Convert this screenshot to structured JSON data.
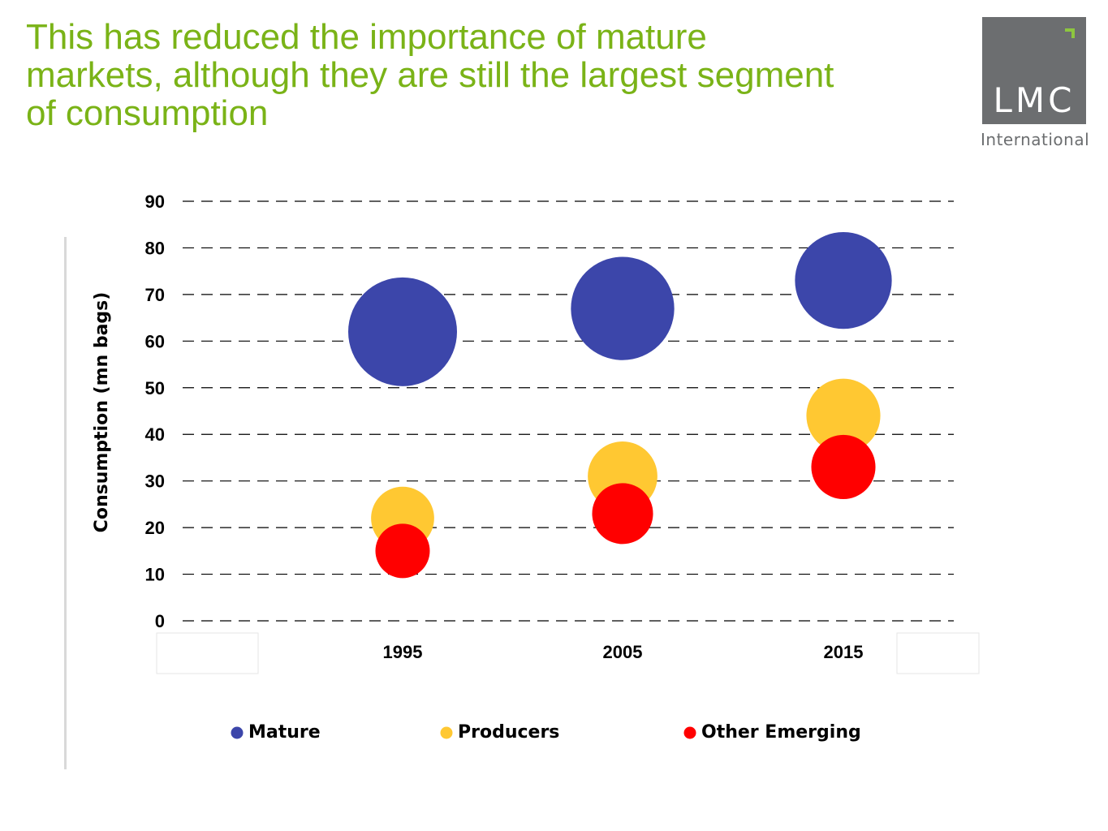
{
  "slide": {
    "title": "This has reduced the importance of mature markets, although they are still the largest segment of consumption"
  },
  "logo": {
    "text": "LMC",
    "subtitle": "International",
    "colors": {
      "box": "#6c6e70",
      "mark": "#8dc63f"
    }
  },
  "chart_data": {
    "type": "bubble",
    "title": "",
    "xlabel": "",
    "ylabel": "Consumption (mn bags)",
    "ylim": [
      0,
      90
    ],
    "y_ticks": [
      0,
      10,
      20,
      30,
      40,
      50,
      60,
      70,
      80,
      90
    ],
    "categories": [
      "1995",
      "2005",
      "2015"
    ],
    "grid": "dashed horizontal",
    "legend_position": "bottom",
    "series": [
      {
        "name": "Mature",
        "color": "#3c46aa",
        "values": [
          62,
          67,
          73
        ],
        "relative_size": [
          1.0,
          0.95,
          0.89
        ]
      },
      {
        "name": "Producers",
        "color": "#ffc832",
        "values": [
          22,
          31,
          44
        ],
        "relative_size": [
          0.58,
          0.64,
          0.68
        ]
      },
      {
        "name": "Other Emerging",
        "color": "#ff0000",
        "values": [
          15,
          23,
          33
        ],
        "relative_size": [
          0.5,
          0.56,
          0.59
        ]
      }
    ]
  }
}
